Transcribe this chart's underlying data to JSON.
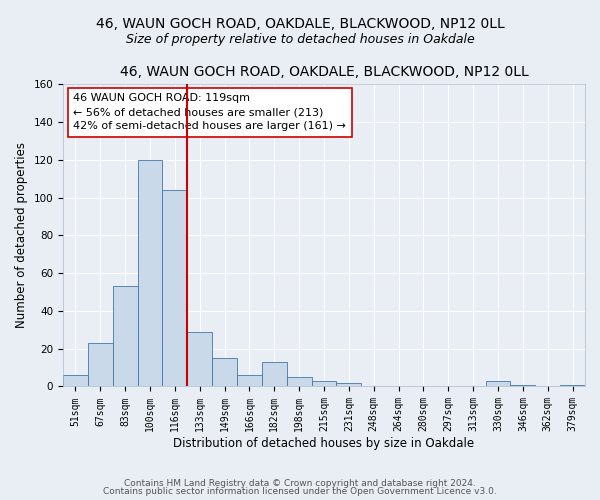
{
  "title": "46, WAUN GOCH ROAD, OAKDALE, BLACKWOOD, NP12 0LL",
  "subtitle": "Size of property relative to detached houses in Oakdale",
  "xlabel": "Distribution of detached houses by size in Oakdale",
  "ylabel": "Number of detached properties",
  "bin_labels": [
    "51sqm",
    "67sqm",
    "83sqm",
    "100sqm",
    "116sqm",
    "133sqm",
    "149sqm",
    "166sqm",
    "182sqm",
    "198sqm",
    "215sqm",
    "231sqm",
    "248sqm",
    "264sqm",
    "280sqm",
    "297sqm",
    "313sqm",
    "330sqm",
    "346sqm",
    "362sqm",
    "379sqm"
  ],
  "bar_values": [
    6,
    23,
    53,
    120,
    104,
    29,
    15,
    6,
    13,
    5,
    3,
    2,
    0,
    0,
    0,
    0,
    0,
    3,
    1,
    0,
    1
  ],
  "bar_color": "#c9d9e9",
  "bar_edge_color": "#4477aa",
  "vline_color": "#cc0000",
  "ylim": [
    0,
    160
  ],
  "yticks": [
    0,
    20,
    40,
    60,
    80,
    100,
    120,
    140,
    160
  ],
  "annotation_title": "46 WAUN GOCH ROAD: 119sqm",
  "annotation_line1": "← 56% of detached houses are smaller (213)",
  "annotation_line2": "42% of semi-detached houses are larger (161) →",
  "annotation_box_color": "#ffffff",
  "annotation_box_edge": "#cc0000",
  "footer1": "Contains HM Land Registry data © Crown copyright and database right 2024.",
  "footer2": "Contains public sector information licensed under the Open Government Licence v3.0.",
  "bg_color": "#e8eef4",
  "grid_color": "#ffffff",
  "title_fontsize": 10,
  "subtitle_fontsize": 9,
  "axis_label_fontsize": 8.5,
  "tick_fontsize": 7,
  "annotation_fontsize": 8,
  "footer_fontsize": 6.5,
  "vline_xindex": 4
}
